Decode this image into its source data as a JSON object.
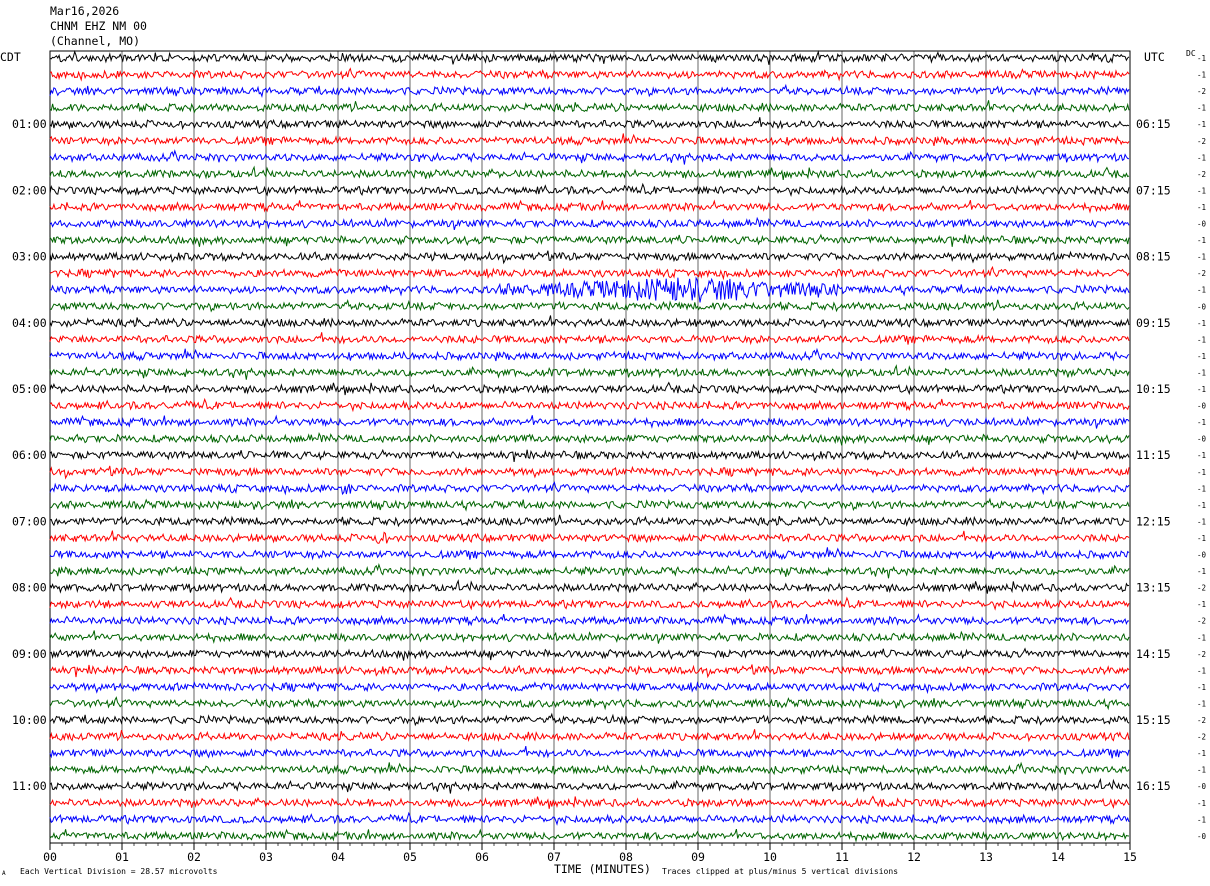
{
  "header": {
    "date": "Mar16,2026",
    "station": "CHNM EHZ NM 00",
    "channel_note": "(Channel, MO)"
  },
  "left_tz": "CDT",
  "right_tz": "UTC",
  "dc_label": "DC",
  "x_axis_title": "TIME (MINUTES)",
  "footer": {
    "scale_note": "Each Vertical Division =   28.57 microvolts",
    "clip_note": "Traces clipped at plus/minus 5 vertical divisions",
    "corner_mark": "A"
  },
  "colors": {
    "cycle": [
      "#000000",
      "#ff0000",
      "#0000ff",
      "#006400"
    ],
    "grid": "#000000"
  },
  "chart_data": {
    "type": "line",
    "title": "CHNM EHZ NM 00",
    "xlabel": "TIME (MINUTES)",
    "x_ticks": [
      "00",
      "01",
      "02",
      "03",
      "04",
      "05",
      "06",
      "07",
      "08",
      "09",
      "10",
      "11",
      "12",
      "13",
      "14",
      "15"
    ],
    "xlim": [
      0,
      15
    ],
    "trace_count": 48,
    "traces_per_hour": 4,
    "left_hour_labels": [
      "01:00",
      "02:00",
      "03:00",
      "04:00",
      "05:00",
      "06:00",
      "07:00",
      "08:00",
      "09:00",
      "10:00",
      "11:00"
    ],
    "right_hour_labels": [
      "06:15",
      "07:15",
      "08:15",
      "09:15",
      "10:15",
      "11:15",
      "12:15",
      "13:15",
      "14:15",
      "15:15",
      "16:15"
    ],
    "dc_offsets": [
      "-1",
      "-1",
      "-2",
      "-1",
      "-1",
      "-2",
      "-1",
      "-2",
      "-1",
      "-1",
      "-0",
      "-1",
      "-1",
      "-2",
      "-1",
      "-0",
      "-1",
      "-1",
      "-1",
      "-1",
      "-1",
      "-0",
      "-1",
      "-0",
      "-1",
      "-1",
      "-1",
      "-1",
      "-1",
      "-1",
      "-0",
      "-1",
      "-2",
      "-1",
      "-2",
      "-1",
      "-2",
      "-1",
      "-1",
      "-1",
      "-2",
      "-2",
      "-1",
      "-1",
      "-0",
      "-1",
      "-1",
      "-0"
    ],
    "events": [
      {
        "trace_index": 14,
        "start_min": 6.2,
        "end_min": 11.0,
        "peak_min": 8.8,
        "amplitude": 4.0
      },
      {
        "trace_index": 29,
        "start_min": 4.5,
        "end_min": 4.7,
        "peak_min": 4.6,
        "amplitude": 2.2
      },
      {
        "trace_index": 26,
        "start_min": 4.0,
        "end_min": 4.2,
        "peak_min": 4.1,
        "amplitude": 1.8
      }
    ]
  }
}
